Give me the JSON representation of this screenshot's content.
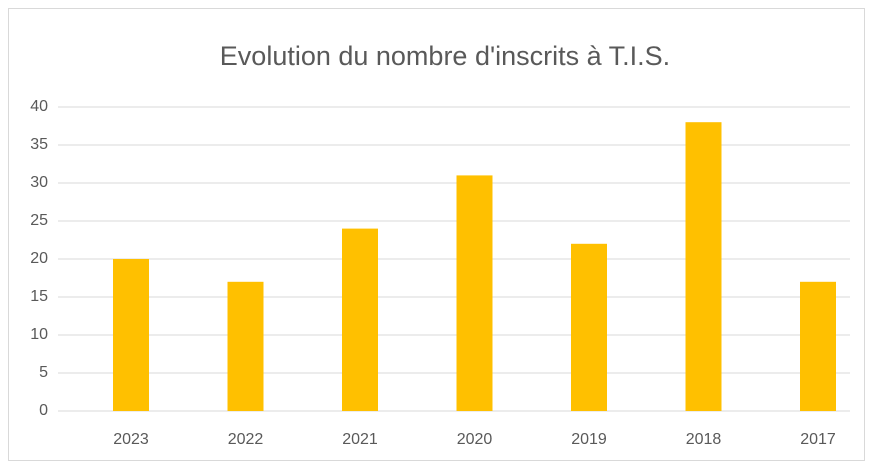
{
  "chart_data": {
    "type": "bar",
    "title": "Evolution du nombre d'inscrits à T.I.S.",
    "categories": [
      "2023",
      "2022",
      "2021",
      "2020",
      "2019",
      "2018",
      "2017"
    ],
    "values": [
      20,
      17,
      24,
      31,
      22,
      38,
      17
    ],
    "color": "#ffc000",
    "ylim": [
      0,
      40
    ],
    "yticks": [
      0,
      5,
      10,
      15,
      20,
      25,
      30,
      35,
      40
    ],
    "grid": true
  }
}
